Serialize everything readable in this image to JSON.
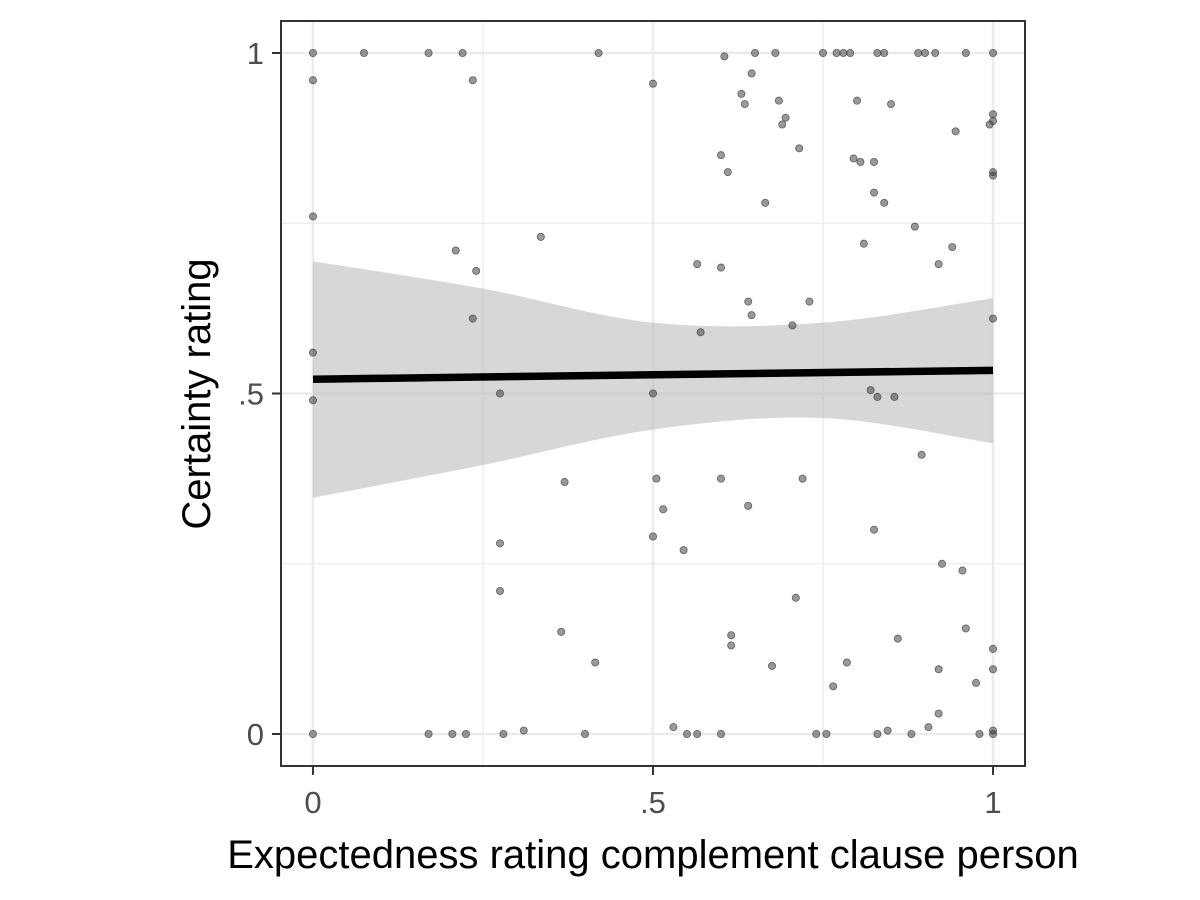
{
  "chart_data": {
    "type": "scatter",
    "title": "",
    "xlabel": "Expectedness rating complement clause person",
    "ylabel": "Certainty rating",
    "xlim": [
      -0.047,
      1.047
    ],
    "ylim": [
      -0.047,
      1.047
    ],
    "x_ticks": [
      {
        "value": 0,
        "label": "0"
      },
      {
        "value": 0.5,
        "label": ".5"
      },
      {
        "value": 1,
        "label": "1"
      }
    ],
    "y_ticks": [
      {
        "value": 0,
        "label": "0"
      },
      {
        "value": 0.5,
        "label": ".5"
      },
      {
        "value": 1,
        "label": "1"
      }
    ],
    "minor_gridlines": [
      0.25,
      0.75
    ],
    "grid": true,
    "legend": "none",
    "colors": {
      "points": "#333333",
      "fit_line": "#000000",
      "ribbon": "#bebebe",
      "panel_border": "#333333",
      "grid": "#ebebeb"
    },
    "series": [
      {
        "kind": "points",
        "points": [
          [
            0.0,
            1.0
          ],
          [
            0.0,
            0.96
          ],
          [
            0.0,
            0.76
          ],
          [
            0.0,
            0.56
          ],
          [
            0.0,
            0.49
          ],
          [
            0.0,
            0.0
          ],
          [
            0.075,
            1.0
          ],
          [
            0.17,
            1.0
          ],
          [
            0.22,
            1.0
          ],
          [
            0.235,
            0.96
          ],
          [
            0.17,
            0.0
          ],
          [
            0.205,
            0.0
          ],
          [
            0.225,
            0.0
          ],
          [
            0.21,
            0.71
          ],
          [
            0.24,
            0.68
          ],
          [
            0.235,
            0.61
          ],
          [
            0.275,
            0.5
          ],
          [
            0.275,
            0.28
          ],
          [
            0.275,
            0.21
          ],
          [
            0.28,
            0.0
          ],
          [
            0.31,
            0.005
          ],
          [
            0.335,
            0.73
          ],
          [
            0.365,
            0.15
          ],
          [
            0.37,
            0.37
          ],
          [
            0.4,
            0.0
          ],
          [
            0.415,
            0.105
          ],
          [
            0.42,
            1.0
          ],
          [
            0.5,
            0.955
          ],
          [
            0.5,
            0.5
          ],
          [
            0.5,
            0.29
          ],
          [
            0.505,
            0.375
          ],
          [
            0.515,
            0.33
          ],
          [
            0.53,
            0.01
          ],
          [
            0.545,
            0.27
          ],
          [
            0.55,
            0.0
          ],
          [
            0.565,
            0.0
          ],
          [
            0.565,
            0.69
          ],
          [
            0.57,
            0.59
          ],
          [
            0.6,
            0.85
          ],
          [
            0.6,
            0.685
          ],
          [
            0.605,
            0.995
          ],
          [
            0.61,
            0.825
          ],
          [
            0.615,
            0.145
          ],
          [
            0.615,
            0.13
          ],
          [
            0.6,
            0.375
          ],
          [
            0.6,
            0.0
          ],
          [
            0.63,
            0.94
          ],
          [
            0.635,
            0.925
          ],
          [
            0.64,
            0.635
          ],
          [
            0.645,
            0.615
          ],
          [
            0.64,
            0.335
          ],
          [
            0.645,
            0.97
          ],
          [
            0.65,
            1.0
          ],
          [
            0.665,
            0.78
          ],
          [
            0.68,
            1.0
          ],
          [
            0.685,
            0.93
          ],
          [
            0.69,
            0.895
          ],
          [
            0.695,
            0.905
          ],
          [
            0.675,
            0.1
          ],
          [
            0.705,
            0.6
          ],
          [
            0.71,
            0.2
          ],
          [
            0.715,
            0.86
          ],
          [
            0.72,
            0.375
          ],
          [
            0.73,
            0.635
          ],
          [
            0.74,
            0.0
          ],
          [
            0.75,
            1.0
          ],
          [
            0.755,
            0.0
          ],
          [
            0.765,
            0.07
          ],
          [
            0.77,
            1.0
          ],
          [
            0.78,
            1.0
          ],
          [
            0.785,
            0.105
          ],
          [
            0.79,
            1.0
          ],
          [
            0.795,
            0.845
          ],
          [
            0.8,
            0.93
          ],
          [
            0.805,
            0.84
          ],
          [
            0.81,
            0.72
          ],
          [
            0.82,
            0.505
          ],
          [
            0.825,
            0.3
          ],
          [
            0.825,
            0.795
          ],
          [
            0.825,
            0.84
          ],
          [
            0.83,
            1.0
          ],
          [
            0.83,
            0.495
          ],
          [
            0.83,
            0.0
          ],
          [
            0.84,
            1.0
          ],
          [
            0.84,
            0.78
          ],
          [
            0.845,
            0.005
          ],
          [
            0.85,
            0.925
          ],
          [
            0.855,
            0.495
          ],
          [
            0.86,
            0.14
          ],
          [
            0.88,
            0.0
          ],
          [
            0.885,
            0.745
          ],
          [
            0.89,
            1.0
          ],
          [
            0.895,
            0.41
          ],
          [
            0.9,
            1.0
          ],
          [
            0.905,
            0.01
          ],
          [
            0.915,
            1.0
          ],
          [
            0.92,
            0.69
          ],
          [
            0.92,
            0.095
          ],
          [
            0.92,
            0.03
          ],
          [
            0.925,
            0.25
          ],
          [
            0.94,
            0.715
          ],
          [
            0.945,
            0.885
          ],
          [
            0.955,
            0.24
          ],
          [
            0.96,
            1.0
          ],
          [
            0.96,
            0.155
          ],
          [
            0.975,
            0.075
          ],
          [
            0.98,
            0.0
          ],
          [
            0.995,
            0.895
          ],
          [
            1.0,
            1.0
          ],
          [
            1.0,
            0.91
          ],
          [
            1.0,
            0.9
          ],
          [
            1.0,
            0.825
          ],
          [
            1.0,
            0.82
          ],
          [
            1.0,
            0.61
          ],
          [
            1.0,
            0.125
          ],
          [
            1.0,
            0.095
          ],
          [
            1.0,
            0.005
          ],
          [
            1.0,
            0.0
          ]
        ]
      },
      {
        "kind": "fit_line",
        "x": [
          0.0,
          1.0
        ],
        "y": [
          0.521,
          0.534
        ]
      },
      {
        "kind": "confidence_band",
        "x": [
          0.0,
          0.25,
          0.5,
          0.75,
          1.0
        ],
        "lower": [
          0.347,
          0.395,
          0.447,
          0.464,
          0.427
        ],
        "upper": [
          0.694,
          0.654,
          0.604,
          0.604,
          0.64
        ]
      }
    ]
  }
}
